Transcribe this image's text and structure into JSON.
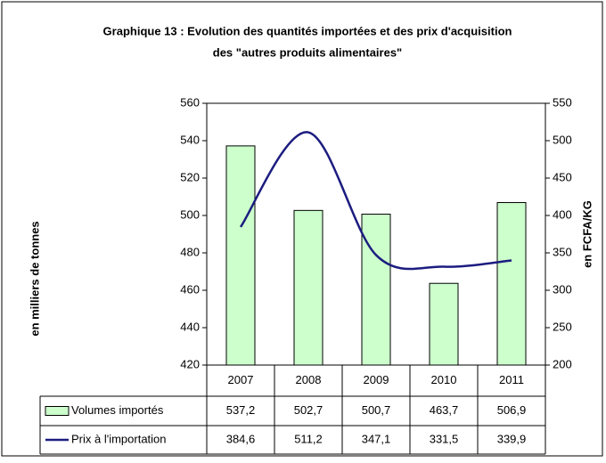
{
  "chart_data": {
    "type": "bar_line",
    "title": [
      "Graphique 13 : Evolution des quantités importées et des prix d'acquisition",
      "des \"autres produits alimentaires\""
    ],
    "y_label": "en milliers de tonnes",
    "y2_label": "en FCFA/KG",
    "categories": [
      "2007",
      "2008",
      "2009",
      "2010",
      "2011"
    ],
    "series": [
      {
        "name": "Volumes importés",
        "type": "bar",
        "color": "#ccffcc",
        "values": [
          537.2,
          502.7,
          500.7,
          463.7,
          506.9
        ],
        "value_labels": [
          "537,2",
          "502,7",
          "500,7",
          "463,7",
          "506,9"
        ]
      },
      {
        "name": "Prix à l'importation",
        "type": "line",
        "axis": "y2",
        "color": "#1c1c80",
        "values": [
          384.6,
          511.2,
          347.1,
          331.5,
          339.9
        ],
        "value_labels": [
          "384,6",
          "511,2",
          "347,1",
          "331,5",
          "339,9"
        ]
      }
    ],
    "ylim": [
      420,
      560
    ],
    "yticks": [
      420,
      440,
      460,
      480,
      500,
      520,
      540,
      560
    ],
    "y2lim": [
      200,
      550
    ],
    "y2ticks": [
      200,
      250,
      300,
      350,
      400,
      450,
      500,
      550
    ]
  }
}
